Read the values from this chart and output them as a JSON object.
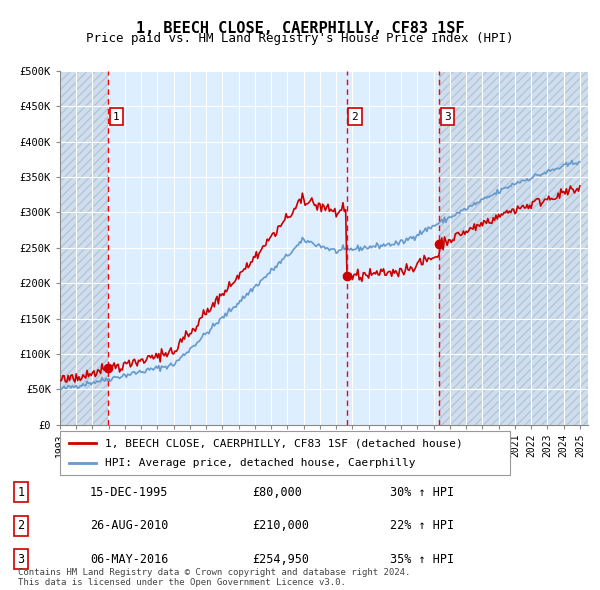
{
  "title": "1, BEECH CLOSE, CAERPHILLY, CF83 1SF",
  "subtitle": "Price paid vs. HM Land Registry's House Price Index (HPI)",
  "property_label": "1, BEECH CLOSE, CAERPHILLY, CF83 1SF (detached house)",
  "hpi_label": "HPI: Average price, detached house, Caerphilly",
  "footer_line1": "Contains HM Land Registry data © Crown copyright and database right 2024.",
  "footer_line2": "This data is licensed under the Open Government Licence v3.0.",
  "sales": [
    {
      "num": 1,
      "date": "15-DEC-1995",
      "price": 80000,
      "hpi_pct": "30% ↑ HPI",
      "x_year": 1995.96
    },
    {
      "num": 2,
      "date": "26-AUG-2010",
      "price": 210000,
      "hpi_pct": "22% ↑ HPI",
      "x_year": 2010.65
    },
    {
      "num": 3,
      "date": "06-MAY-2016",
      "price": 254950,
      "hpi_pct": "35% ↑ HPI",
      "x_year": 2016.35
    }
  ],
  "ylim": [
    0,
    500000
  ],
  "xlim_start": 1993.0,
  "xlim_end": 2025.5,
  "yticks": [
    0,
    50000,
    100000,
    150000,
    200000,
    250000,
    300000,
    350000,
    400000,
    450000,
    500000
  ],
  "ytick_labels": [
    "£0",
    "£50K",
    "£100K",
    "£150K",
    "£200K",
    "£250K",
    "£300K",
    "£350K",
    "£400K",
    "£450K",
    "£500K"
  ],
  "xticks": [
    1993,
    1994,
    1995,
    1996,
    1997,
    1998,
    1999,
    2000,
    2001,
    2002,
    2003,
    2004,
    2005,
    2006,
    2007,
    2008,
    2009,
    2010,
    2011,
    2012,
    2013,
    2014,
    2015,
    2016,
    2017,
    2018,
    2019,
    2020,
    2021,
    2022,
    2023,
    2024,
    2025
  ],
  "property_color": "#cc0000",
  "hpi_color": "#6699cc",
  "sale_marker_color": "#cc0000",
  "bg_color": "#ddeeff",
  "hatch_color": "#bbccdd",
  "grid_color": "#ffffff",
  "title_fontsize": 11,
  "subtitle_fontsize": 9,
  "legend_fontsize": 8,
  "tick_fontsize": 7.5,
  "table_fontsize": 8.5
}
